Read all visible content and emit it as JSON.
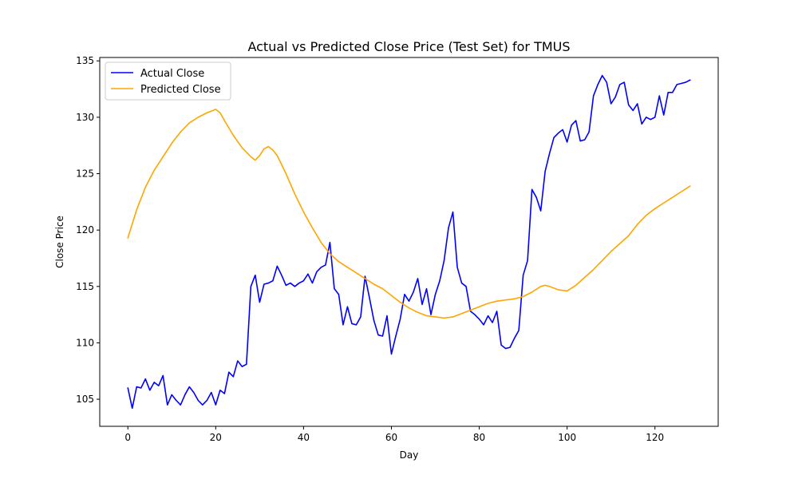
{
  "chart_data": {
    "type": "line",
    "title": "Actual vs Predicted Close Price (Test Set) for TMUS",
    "xlabel": "Day",
    "ylabel": "Close Price",
    "xlim": [
      -6.4,
      134.4
    ],
    "ylim": [
      102.6,
      135.3
    ],
    "xticks": [
      0,
      20,
      40,
      60,
      80,
      100,
      120
    ],
    "yticks": [
      105,
      110,
      115,
      120,
      125,
      130,
      135
    ],
    "grid": false,
    "legend_position": "top-left",
    "series": [
      {
        "name": "Actual Close",
        "color": "#0000ff",
        "x": [
          0,
          1,
          2,
          3,
          4,
          5,
          6,
          7,
          8,
          9,
          10,
          11,
          12,
          13,
          14,
          15,
          16,
          17,
          18,
          19,
          20,
          21,
          22,
          23,
          24,
          25,
          26,
          27,
          28,
          29,
          30,
          31,
          32,
          33,
          34,
          35,
          36,
          37,
          38,
          39,
          40,
          41,
          42,
          43,
          44,
          45,
          46,
          47,
          48,
          49,
          50,
          51,
          52,
          53,
          54,
          55,
          56,
          57,
          58,
          59,
          60,
          61,
          62,
          63,
          64,
          65,
          66,
          67,
          68,
          69,
          70,
          71,
          72,
          73,
          74,
          75,
          76,
          77,
          78,
          79,
          80,
          81,
          82,
          83,
          84,
          85,
          86,
          87,
          88,
          89,
          90,
          91,
          92,
          93,
          94,
          95,
          96,
          97,
          98,
          99,
          100,
          101,
          102,
          103,
          104,
          105,
          106,
          107,
          108,
          109,
          110,
          111,
          112,
          113,
          114,
          115,
          116,
          117,
          118,
          119,
          120,
          121,
          122,
          123,
          124,
          125,
          126,
          127,
          128
        ],
        "values": [
          106.0,
          104.2,
          106.1,
          106.0,
          106.8,
          105.8,
          106.5,
          106.2,
          107.1,
          104.5,
          105.4,
          104.9,
          104.5,
          105.4,
          106.1,
          105.6,
          104.9,
          104.5,
          104.9,
          105.6,
          104.5,
          105.8,
          105.5,
          107.4,
          107.0,
          108.4,
          107.9,
          108.1,
          115.0,
          116.0,
          113.6,
          115.2,
          115.3,
          115.5,
          116.8,
          116.0,
          115.1,
          115.3,
          115.0,
          115.3,
          115.5,
          116.1,
          115.3,
          116.3,
          116.7,
          116.9,
          118.9,
          114.8,
          114.3,
          111.6,
          113.2,
          111.7,
          111.6,
          112.3,
          115.9,
          114.0,
          112.0,
          110.7,
          110.6,
          112.4,
          109.0,
          110.6,
          112.1,
          114.3,
          113.7,
          114.5,
          115.7,
          113.4,
          114.8,
          112.5,
          114.3,
          115.5,
          117.3,
          120.2,
          121.6,
          116.7,
          115.3,
          115.0,
          112.8,
          112.5,
          112.1,
          111.6,
          112.4,
          111.8,
          112.8,
          109.8,
          109.5,
          109.6,
          110.4,
          111.1,
          116.0,
          117.3,
          123.6,
          122.9,
          121.7,
          125.2,
          126.8,
          128.2,
          128.6,
          128.9,
          127.8,
          129.3,
          129.7,
          127.9,
          128.0,
          128.7,
          131.9,
          132.9,
          133.7,
          133.1,
          131.2,
          131.8,
          132.9,
          133.1,
          131.1,
          130.6,
          131.2,
          129.4,
          130.0,
          129.8,
          130.0,
          131.9,
          130.2,
          132.2,
          132.2,
          132.9,
          133.0,
          133.1,
          133.3
        ]
      },
      {
        "name": "Predicted Close",
        "color": "#ffa500",
        "x": [
          0,
          2,
          4,
          6,
          8,
          10,
          12,
          14,
          16,
          18,
          20,
          21,
          22,
          24,
          26,
          28,
          29,
          30,
          31,
          32,
          33,
          34,
          36,
          38,
          40,
          42,
          44,
          46,
          48,
          50,
          52,
          54,
          56,
          58,
          60,
          62,
          64,
          66,
          68,
          70,
          72,
          74,
          76,
          78,
          80,
          82,
          84,
          86,
          88,
          90,
          92,
          94,
          95,
          96,
          98,
          100,
          102,
          104,
          106,
          108,
          110,
          112,
          114,
          116,
          118,
          120,
          122,
          124,
          126,
          128
        ],
        "values": [
          119.3,
          121.8,
          123.8,
          125.3,
          126.5,
          127.7,
          128.7,
          129.5,
          130.0,
          130.4,
          130.7,
          130.4,
          129.7,
          128.4,
          127.3,
          126.5,
          126.2,
          126.6,
          127.2,
          127.4,
          127.1,
          126.6,
          125.0,
          123.2,
          121.6,
          120.2,
          118.9,
          117.9,
          117.2,
          116.7,
          116.2,
          115.7,
          115.2,
          114.8,
          114.2,
          113.6,
          113.1,
          112.7,
          112.4,
          112.3,
          112.2,
          112.3,
          112.6,
          112.9,
          113.2,
          113.5,
          113.7,
          113.8,
          113.9,
          114.1,
          114.5,
          115.0,
          115.1,
          115.0,
          114.7,
          114.6,
          115.1,
          115.8,
          116.5,
          117.3,
          118.1,
          118.8,
          119.5,
          120.5,
          121.3,
          121.9,
          122.4,
          122.9,
          123.4,
          123.9
        ]
      }
    ]
  }
}
